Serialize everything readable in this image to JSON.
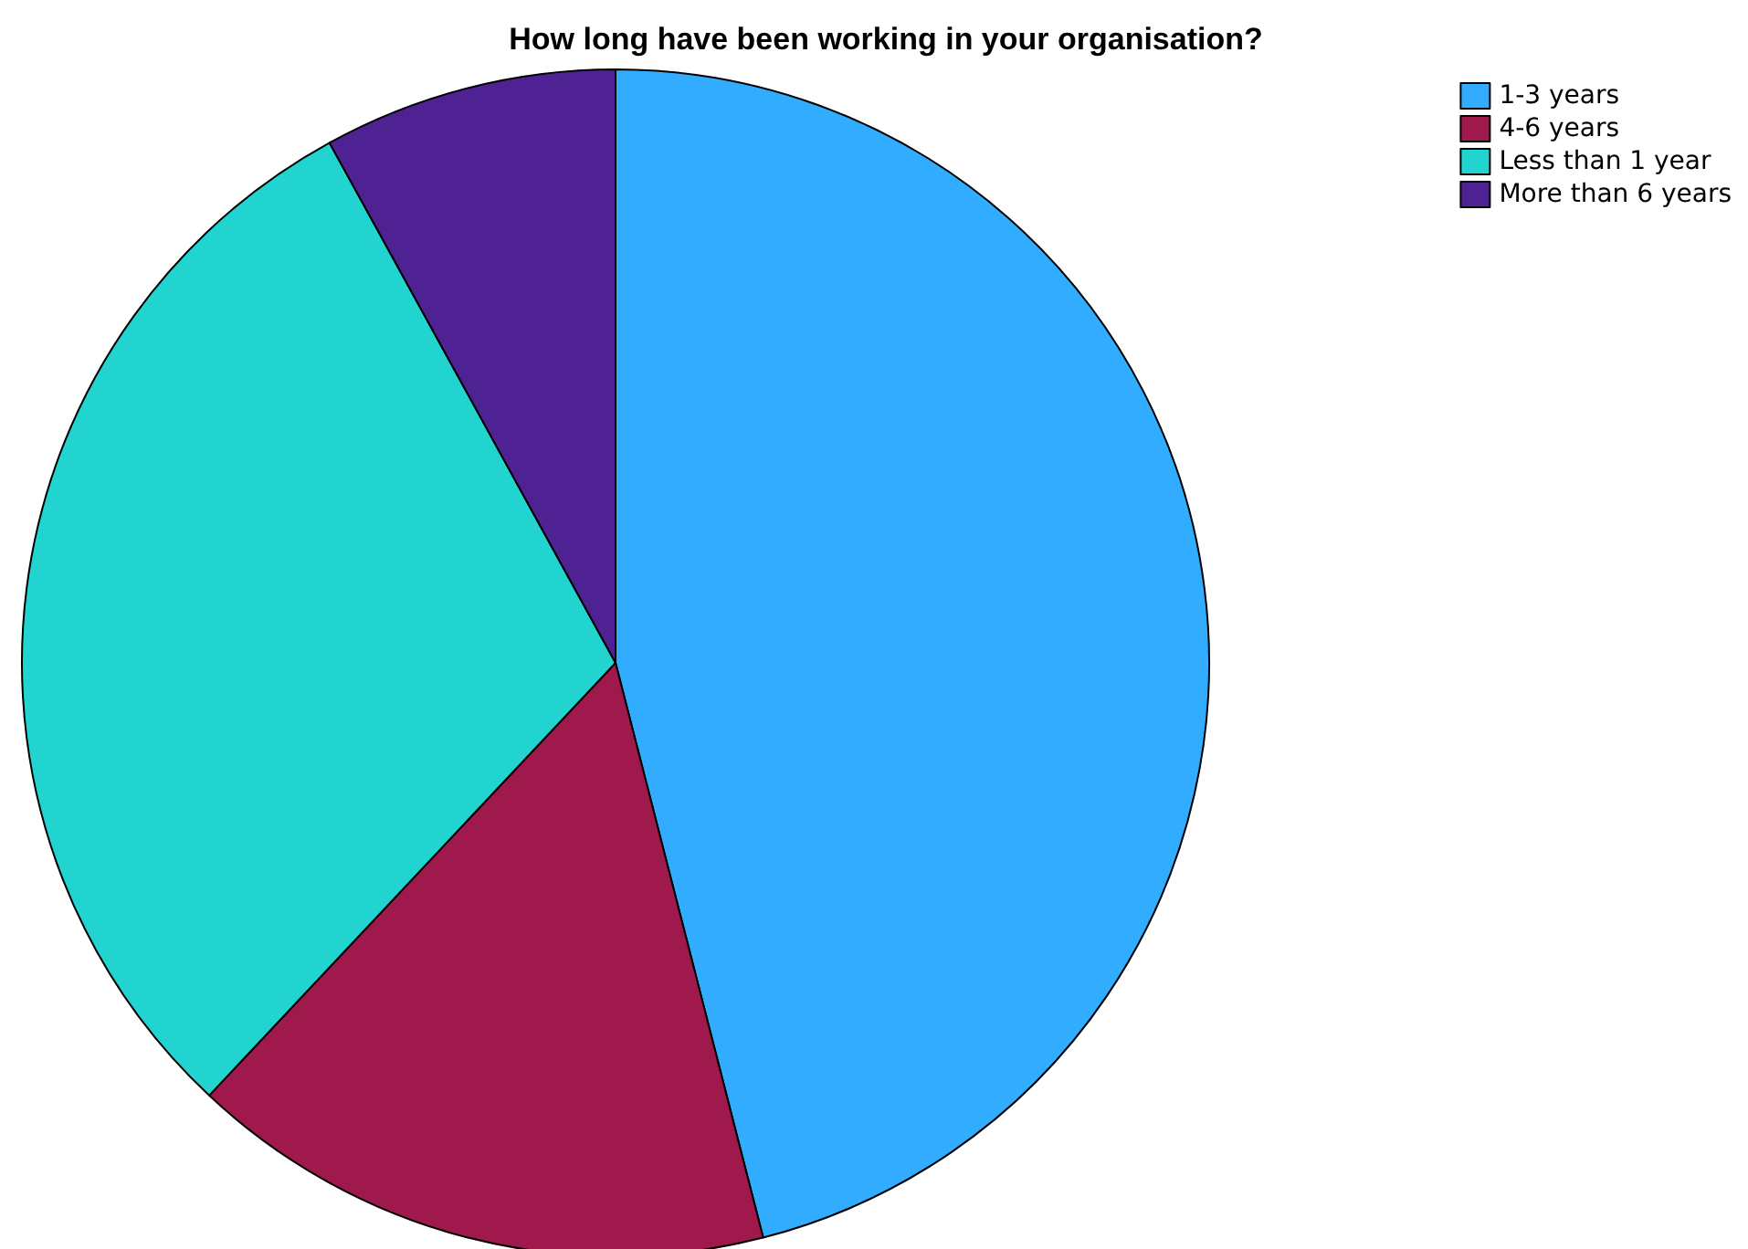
{
  "chart_data": {
    "type": "pie",
    "title": "How long have been working in your organisation?",
    "categories": [
      "1-3 years",
      "4-6 years",
      "Less than 1 year",
      "More than 6 years"
    ],
    "values": [
      46,
      16,
      30,
      8
    ],
    "colors": [
      "#32acff",
      "#a0194c",
      "#22d4d0",
      "#4f2293"
    ],
    "legend": "top right"
  }
}
